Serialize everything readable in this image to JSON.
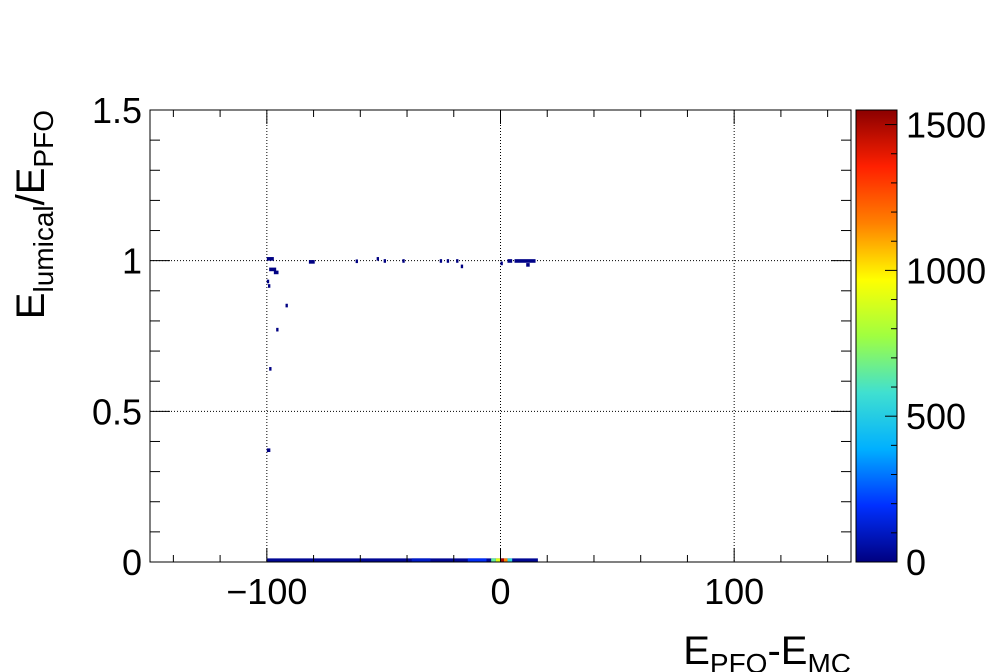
{
  "chart_data": {
    "type": "heatmap",
    "xlabel": "E_PFO-E_MC",
    "ylabel": "E_lumical/E_PFO",
    "xlabel_parts": {
      "main1": "E",
      "sub1": "PFO",
      "main2": "-E",
      "sub2": "MC"
    },
    "ylabel_parts": {
      "main1": "E",
      "sub1": "lumical",
      "main2": "/E",
      "sub2": "PFO"
    },
    "xlim": [
      -150,
      150
    ],
    "ylim": [
      0,
      1.5
    ],
    "x_ticks": [
      -100,
      0,
      100
    ],
    "x_tick_labels": [
      "−100",
      "0",
      "100"
    ],
    "y_ticks": [
      0,
      0.5,
      1,
      1.5
    ],
    "y_tick_labels": [
      "0",
      "0.5",
      "1",
      "1.5"
    ],
    "grid": true,
    "colorbar": {
      "range": [
        0,
        1550
      ],
      "ticks": [
        0,
        500,
        1000,
        1500
      ],
      "tick_labels": [
        "0",
        "500",
        "1000",
        "1500"
      ],
      "palette": [
        "#000080",
        "#0030ff",
        "#00b0ff",
        "#40e0d0",
        "#a0ff40",
        "#ffff00",
        "#ff8000",
        "#ff2000",
        "#8b0000"
      ]
    },
    "cells": [
      {
        "x": -100,
        "y": 0.0,
        "w": 116,
        "h": 0.012,
        "count": 30
      },
      {
        "x": -38,
        "y": 0.0,
        "w": 8,
        "h": 0.012,
        "count": 110
      },
      {
        "x": -14,
        "y": 0.0,
        "w": 8,
        "h": 0.012,
        "count": 180
      },
      {
        "x": -4,
        "y": 0.0,
        "w": 2,
        "h": 0.012,
        "count": 650
      },
      {
        "x": -2,
        "y": 0.0,
        "w": 2,
        "h": 0.012,
        "count": 900
      },
      {
        "x": 0,
        "y": 0.0,
        "w": 1.5,
        "h": 0.012,
        "count": 1500
      },
      {
        "x": 1.5,
        "y": 0.0,
        "w": 1.5,
        "h": 0.012,
        "count": 1150
      },
      {
        "x": 3,
        "y": 0.0,
        "w": 2,
        "h": 0.012,
        "count": 550
      },
      {
        "x": -100,
        "y": 1.0,
        "w": 3,
        "h": 0.012,
        "count": 5
      },
      {
        "x": -99,
        "y": 0.965,
        "w": 3,
        "h": 0.012,
        "count": 5
      },
      {
        "x": -97,
        "y": 0.955,
        "w": 2,
        "h": 0.012,
        "count": 5
      },
      {
        "x": -100,
        "y": 0.925,
        "w": 1,
        "h": 0.012,
        "count": 5
      },
      {
        "x": -99.5,
        "y": 0.91,
        "w": 1,
        "h": 0.012,
        "count": 5
      },
      {
        "x": -92,
        "y": 0.845,
        "w": 1,
        "h": 0.012,
        "count": 5
      },
      {
        "x": -96,
        "y": 0.765,
        "w": 1,
        "h": 0.012,
        "count": 5
      },
      {
        "x": -99,
        "y": 0.635,
        "w": 1,
        "h": 0.012,
        "count": 5
      },
      {
        "x": -100,
        "y": 0.365,
        "w": 1.5,
        "h": 0.012,
        "count": 5
      },
      {
        "x": -82,
        "y": 0.99,
        "w": 2.5,
        "h": 0.012,
        "count": 5
      },
      {
        "x": -62,
        "y": 0.992,
        "w": 1,
        "h": 0.012,
        "count": 5
      },
      {
        "x": -53,
        "y": 1.0,
        "w": 1,
        "h": 0.012,
        "count": 5
      },
      {
        "x": -50,
        "y": 0.993,
        "w": 1,
        "h": 0.012,
        "count": 5
      },
      {
        "x": -42,
        "y": 0.993,
        "w": 1,
        "h": 0.012,
        "count": 5
      },
      {
        "x": -26,
        "y": 0.993,
        "w": 1,
        "h": 0.012,
        "count": 5
      },
      {
        "x": -23,
        "y": 0.993,
        "w": 1,
        "h": 0.012,
        "count": 5
      },
      {
        "x": -19,
        "y": 0.993,
        "w": 1,
        "h": 0.012,
        "count": 5
      },
      {
        "x": -17,
        "y": 0.975,
        "w": 1,
        "h": 0.012,
        "count": 5
      },
      {
        "x": 0,
        "y": 0.985,
        "w": 1,
        "h": 0.012,
        "count": 5
      },
      {
        "x": 3,
        "y": 0.993,
        "w": 2,
        "h": 0.012,
        "count": 5
      },
      {
        "x": 6,
        "y": 0.993,
        "w": 9,
        "h": 0.012,
        "count": 10
      },
      {
        "x": 11,
        "y": 0.98,
        "w": 1.5,
        "h": 0.012,
        "count": 5
      }
    ]
  }
}
